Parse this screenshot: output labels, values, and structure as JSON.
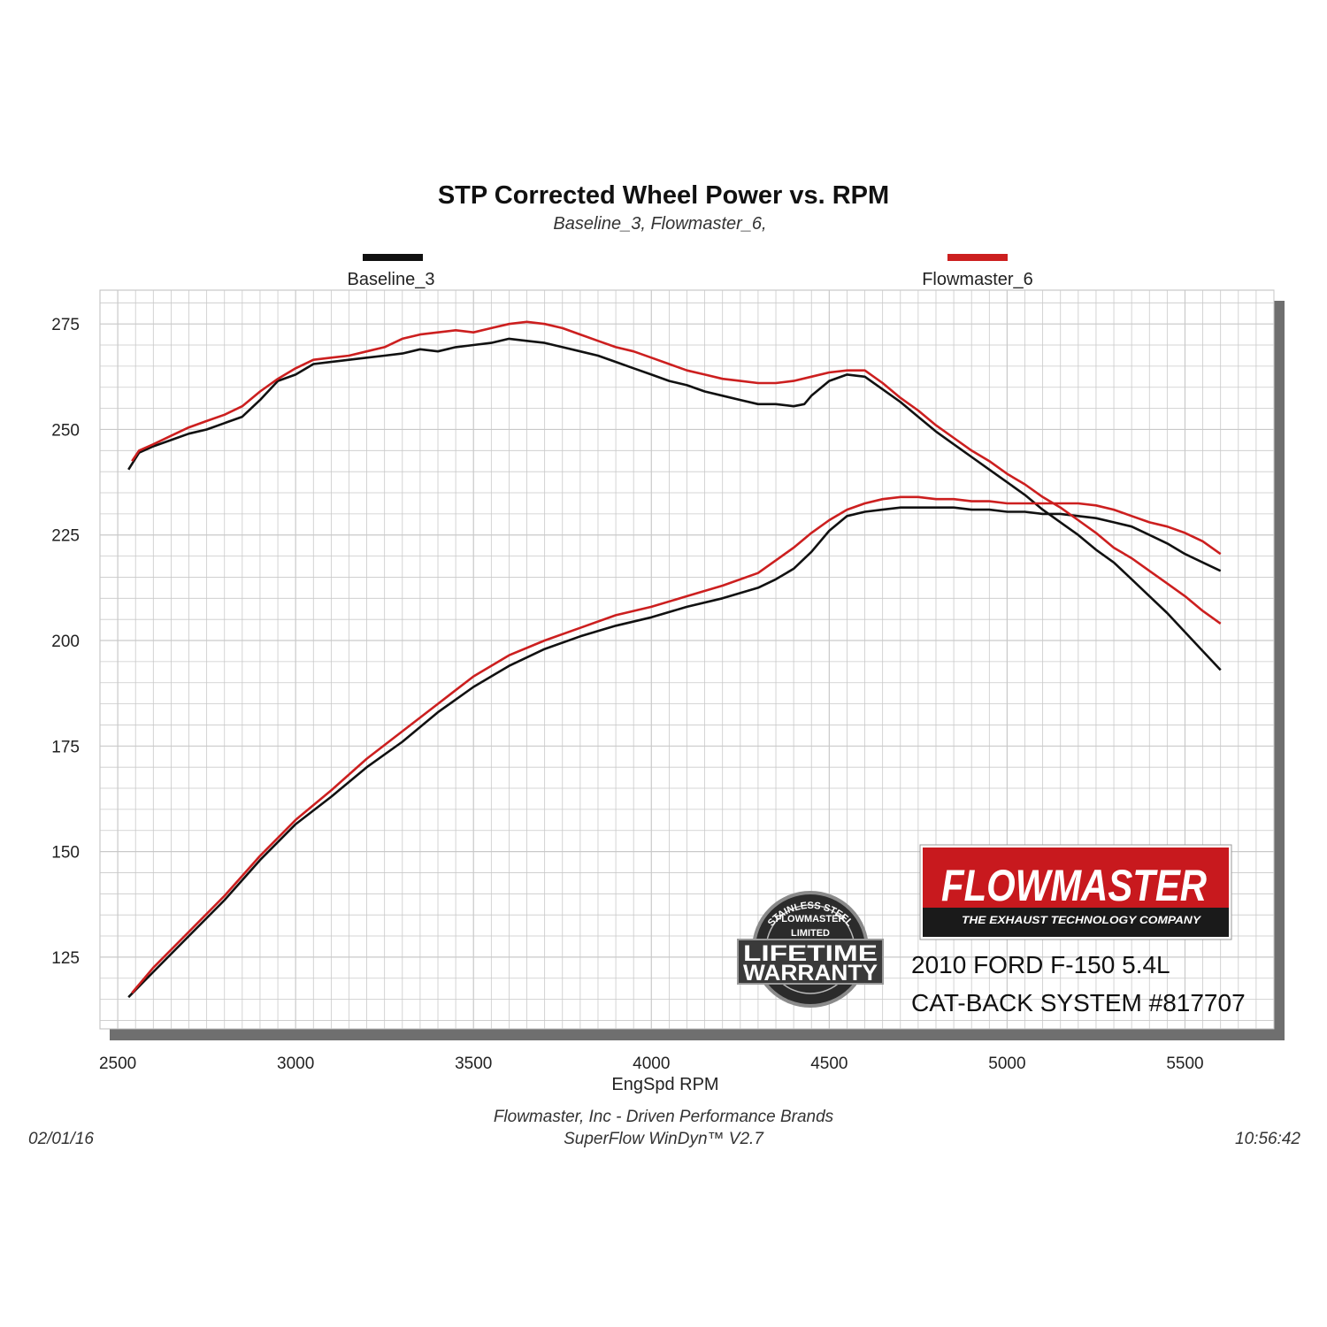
{
  "chart_data": {
    "type": "line",
    "title": "STP Corrected Wheel Power vs. RPM",
    "subtitle": "Baseline_3, Flowmaster_6,",
    "xlabel": "EngSpd  RPM",
    "ylabel": "",
    "xlim": [
      2450,
      5750
    ],
    "ylim": [
      108,
      283
    ],
    "xticks": [
      2500,
      3000,
      3500,
      4000,
      4500,
      5000,
      5500
    ],
    "yticks": [
      125,
      150,
      175,
      200,
      225,
      250,
      275
    ],
    "grid": true,
    "legend_placement": "top",
    "series": [
      {
        "name": "Baseline_3",
        "color": "#111111",
        "curves": [
          {
            "x": [
              2530,
              2560,
              2600,
              2650,
              2700,
              2750,
              2800,
              2850,
              2900,
              2950,
              3000,
              3050,
              3100,
              3150,
              3200,
              3250,
              3300,
              3350,
              3400,
              3450,
              3500,
              3550,
              3600,
              3650,
              3700,
              3750,
              3800,
              3850,
              3900,
              3950,
              4000,
              4050,
              4100,
              4150,
              4200,
              4250,
              4300,
              4350,
              4400,
              4430,
              4450,
              4500,
              4550,
              4600,
              4650,
              4700,
              4750,
              4800,
              4850,
              4900,
              4950,
              5000,
              5050,
              5100,
              5150,
              5200,
              5250,
              5300,
              5350,
              5400,
              5450,
              5500,
              5550,
              5600
            ],
            "y": [
              240.5,
              244.5,
              246.0,
              247.5,
              249.0,
              250.0,
              251.5,
              253.0,
              257.0,
              261.5,
              263.0,
              265.5,
              266.0,
              266.5,
              267.0,
              267.5,
              268.0,
              269.0,
              268.5,
              269.5,
              270.0,
              270.5,
              271.5,
              271.0,
              270.5,
              269.5,
              268.5,
              267.5,
              266.0,
              264.5,
              263.0,
              261.5,
              260.5,
              259.0,
              258.0,
              257.0,
              256.0,
              256.0,
              255.5,
              256.0,
              258.0,
              261.5,
              263.0,
              262.5,
              259.5,
              256.5,
              253.0,
              249.5,
              246.5,
              243.5,
              240.5,
              237.5,
              234.5,
              231.0,
              228.0,
              225.0,
              221.5,
              218.5,
              214.5,
              210.5,
              206.5,
              202.0,
              197.5,
              193.0
            ]
          },
          {
            "x": [
              2530,
              2600,
              2700,
              2800,
              2900,
              3000,
              3100,
              3200,
              3300,
              3400,
              3500,
              3600,
              3700,
              3800,
              3900,
              4000,
              4100,
              4200,
              4300,
              4350,
              4400,
              4450,
              4500,
              4550,
              4600,
              4650,
              4700,
              4750,
              4800,
              4850,
              4900,
              4950,
              5000,
              5050,
              5100,
              5150,
              5200,
              5250,
              5300,
              5350,
              5400,
              5450,
              5500,
              5550,
              5600
            ],
            "y": [
              115.5,
              121.5,
              130.0,
              138.5,
              148.0,
              156.5,
              163.0,
              170.0,
              176.0,
              183.0,
              189.0,
              194.0,
              198.0,
              201.0,
              203.5,
              205.5,
              208.0,
              210.0,
              212.5,
              214.5,
              217.0,
              221.0,
              226.0,
              229.5,
              230.5,
              231.0,
              231.5,
              231.5,
              231.5,
              231.5,
              231.0,
              231.0,
              230.5,
              230.5,
              230.0,
              230.0,
              229.5,
              229.0,
              228.0,
              227.0,
              225.0,
              223.0,
              220.5,
              218.5,
              216.5
            ]
          }
        ]
      },
      {
        "name": "Flowmaster_6",
        "color": "#cc1f1f",
        "curves": [
          {
            "x": [
              2540,
              2560,
              2600,
              2650,
              2700,
              2750,
              2800,
              2850,
              2900,
              2950,
              3000,
              3050,
              3100,
              3150,
              3200,
              3250,
              3300,
              3350,
              3400,
              3450,
              3500,
              3550,
              3600,
              3650,
              3700,
              3750,
              3800,
              3850,
              3900,
              3950,
              4000,
              4050,
              4100,
              4150,
              4200,
              4250,
              4300,
              4350,
              4400,
              4450,
              4500,
              4550,
              4600,
              4650,
              4700,
              4750,
              4800,
              4850,
              4900,
              4950,
              5000,
              5050,
              5100,
              5150,
              5200,
              5250,
              5300,
              5350,
              5400,
              5450,
              5500,
              5550,
              5600
            ],
            "y": [
              242.5,
              245.0,
              246.5,
              248.5,
              250.5,
              252.0,
              253.5,
              255.5,
              259.0,
              262.0,
              264.5,
              266.5,
              267.0,
              267.5,
              268.5,
              269.5,
              271.5,
              272.5,
              273.0,
              273.5,
              273.0,
              274.0,
              275.0,
              275.5,
              275.0,
              274.0,
              272.5,
              271.0,
              269.5,
              268.5,
              267.0,
              265.5,
              264.0,
              263.0,
              262.0,
              261.5,
              261.0,
              261.0,
              261.5,
              262.5,
              263.5,
              264.0,
              264.0,
              261.0,
              257.5,
              254.5,
              251.0,
              248.0,
              245.0,
              242.5,
              239.5,
              237.0,
              234.0,
              231.5,
              228.5,
              225.5,
              222.0,
              219.5,
              216.5,
              213.5,
              210.5,
              207.0,
              204.0
            ]
          },
          {
            "x": [
              2540,
              2600,
              2700,
              2800,
              2900,
              3000,
              3100,
              3200,
              3300,
              3400,
              3500,
              3600,
              3700,
              3800,
              3900,
              4000,
              4100,
              4200,
              4300,
              4350,
              4400,
              4450,
              4500,
              4550,
              4600,
              4650,
              4700,
              4750,
              4800,
              4850,
              4900,
              4950,
              5000,
              5050,
              5100,
              5150,
              5200,
              5250,
              5300,
              5350,
              5400,
              5450,
              5500,
              5550,
              5600
            ],
            "y": [
              116.5,
              122.5,
              131.0,
              139.5,
              149.0,
              157.5,
              164.5,
              172.0,
              178.5,
              185.0,
              191.5,
              196.5,
              200.0,
              203.0,
              206.0,
              208.0,
              210.5,
              213.0,
              216.0,
              219.0,
              222.0,
              225.5,
              228.5,
              231.0,
              232.5,
              233.5,
              234.0,
              234.0,
              233.5,
              233.5,
              233.0,
              233.0,
              232.5,
              232.5,
              232.5,
              232.5,
              232.5,
              232.0,
              231.0,
              229.5,
              228.0,
              227.0,
              225.5,
              223.5,
              220.5
            ]
          }
        ]
      }
    ]
  },
  "footer": {
    "line1": "Flowmaster, Inc - Driven Performance Brands",
    "line2": "SuperFlow WinDyn™ V2.7",
    "date": "02/01/16",
    "time": "10:56:42"
  },
  "branding": {
    "logo_word": "FLOWMASTER",
    "logo_tagline": "THE EXHAUST TECHNOLOGY COMPANY",
    "badge_arc": "STAINLESS STEEL",
    "badge_brand": "FLOWMASTER",
    "badge_limited": "LIMITED",
    "badge_line1": "LIFETIME",
    "badge_line2": "WARRANTY",
    "product_line1": "2010 FORD F-150 5.4L",
    "product_line2": "CAT-BACK SYSTEM #817707"
  },
  "colors": {
    "logo_red": "#c8191e",
    "grid": "#c9c9c9",
    "frame_shadow": "#777777"
  }
}
